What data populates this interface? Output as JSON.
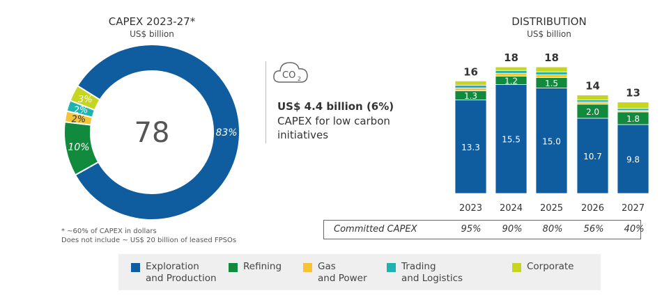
{
  "chart_data": [
    {
      "type": "pie",
      "title": "CAPEX 2023-27*",
      "subtitle": "US$ billion",
      "center_label": "78",
      "slices": [
        {
          "name": "Exploration and Production",
          "value": 83,
          "label": "83%",
          "color": "#0f5c9f"
        },
        {
          "name": "Refining",
          "value": 10,
          "label": "10%",
          "color": "#118a3e"
        },
        {
          "name": "Gas and Power",
          "value": 2,
          "label": "2%",
          "color": "#f6c335"
        },
        {
          "name": "Trading and Logistics",
          "value": 2,
          "label": "2%",
          "color": "#1fb3b0"
        },
        {
          "name": "Corporate",
          "value": 3,
          "label": "3%",
          "color": "#c6d620"
        }
      ],
      "notes": [
        "* ~60% of CAPEX in dollars",
        "Does not include ~ US$ 20 billion of leased FPSOs"
      ]
    },
    {
      "type": "bar",
      "stacked": true,
      "title": "DISTRIBUTION",
      "subtitle": "US$ billion",
      "categories": [
        "2023",
        "2024",
        "2025",
        "2026",
        "2027"
      ],
      "totals": [
        16,
        18,
        18,
        14,
        13
      ],
      "series": [
        {
          "name": "Exploration and Production",
          "values": [
            13.3,
            15.5,
            15.0,
            10.7,
            9.8
          ],
          "color": "#0f5c9f",
          "labeled": true
        },
        {
          "name": "Refining",
          "values": [
            1.3,
            1.2,
            1.5,
            2.0,
            1.8
          ],
          "color": "#118a3e",
          "labeled": true
        },
        {
          "name": "Gas and Power",
          "values": [
            0.4,
            0.4,
            0.4,
            0.3,
            0.2
          ],
          "color": "#f6c335"
        },
        {
          "name": "Trading and Logistics",
          "values": [
            0.4,
            0.4,
            0.4,
            0.3,
            0.3
          ],
          "color": "#1fb3b0"
        },
        {
          "name": "Corporate",
          "values": [
            0.6,
            0.5,
            0.7,
            0.7,
            0.9
          ],
          "color": "#c6d620"
        }
      ]
    }
  ],
  "low_carbon": {
    "icon": "co2-cloud-icon",
    "co2": "CO",
    "sub2": "2",
    "amount": "US$ 4.4 billion (6%)",
    "line1": "CAPEX for low carbon",
    "line2": "initiatives"
  },
  "committed": {
    "label": "Committed CAPEX",
    "values": [
      "95%",
      "90%",
      "80%",
      "56%",
      "40%"
    ]
  },
  "legend": [
    {
      "l1": "Exploration",
      "l2": "and Production"
    },
    {
      "l1": "Refining",
      "l2": ""
    },
    {
      "l1": "Gas",
      "l2": "and Power"
    },
    {
      "l1": "Trading",
      "l2": "and Logistics"
    },
    {
      "l1": "Corporate",
      "l2": ""
    }
  ]
}
